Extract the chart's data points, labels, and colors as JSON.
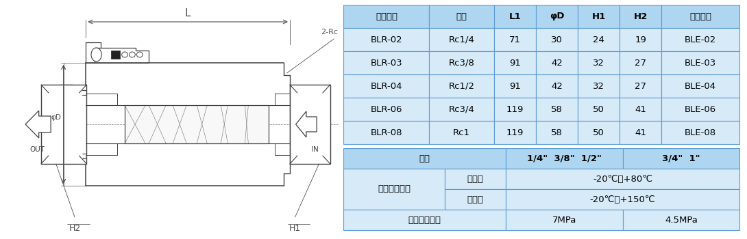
{
  "table1_headers": [
    "产品型号",
    "口径",
    "L1",
    "φD",
    "H1",
    "H2",
    "元素符号"
  ],
  "table1_rows": [
    [
      "BLR-02",
      "Rc1/4",
      "71",
      "30",
      "24",
      "19",
      "BLE-02"
    ],
    [
      "BLR-03",
      "Rc3/8",
      "91",
      "42",
      "32",
      "27",
      "BLE-03"
    ],
    [
      "BLR-04",
      "Rc1/2",
      "91",
      "42",
      "32",
      "27",
      "BLE-04"
    ],
    [
      "BLR-06",
      "Rc3/4",
      "119",
      "58",
      "50",
      "41",
      "BLE-06"
    ],
    [
      "BLR-08",
      "Rc1",
      "119",
      "58",
      "50",
      "41",
      "BLE-08"
    ]
  ],
  "table2": {
    "header_col1": "口径",
    "header_val1": "1/4\"  3/8\"  1/2\"",
    "header_val2": "3/4\"  1\"",
    "row1_label": "使用温度范围",
    "row1_sub1": "标准型",
    "row1_val1": "-20℃～+80℃",
    "row1_sub2": "耐热型",
    "row1_val2": "-20℃～+150℃",
    "row2_label": "最高使用压力",
    "row2_val1": "7MPa",
    "row2_val2": "4.5MPa"
  },
  "header_bg": "#aed6f1",
  "cell_bg": "#d6eaf8",
  "border_color": "#5b9bd5",
  "text_color": "#000000",
  "fig_bg": "#ffffff",
  "draw_color": "#404040",
  "dim_color": "#505050"
}
